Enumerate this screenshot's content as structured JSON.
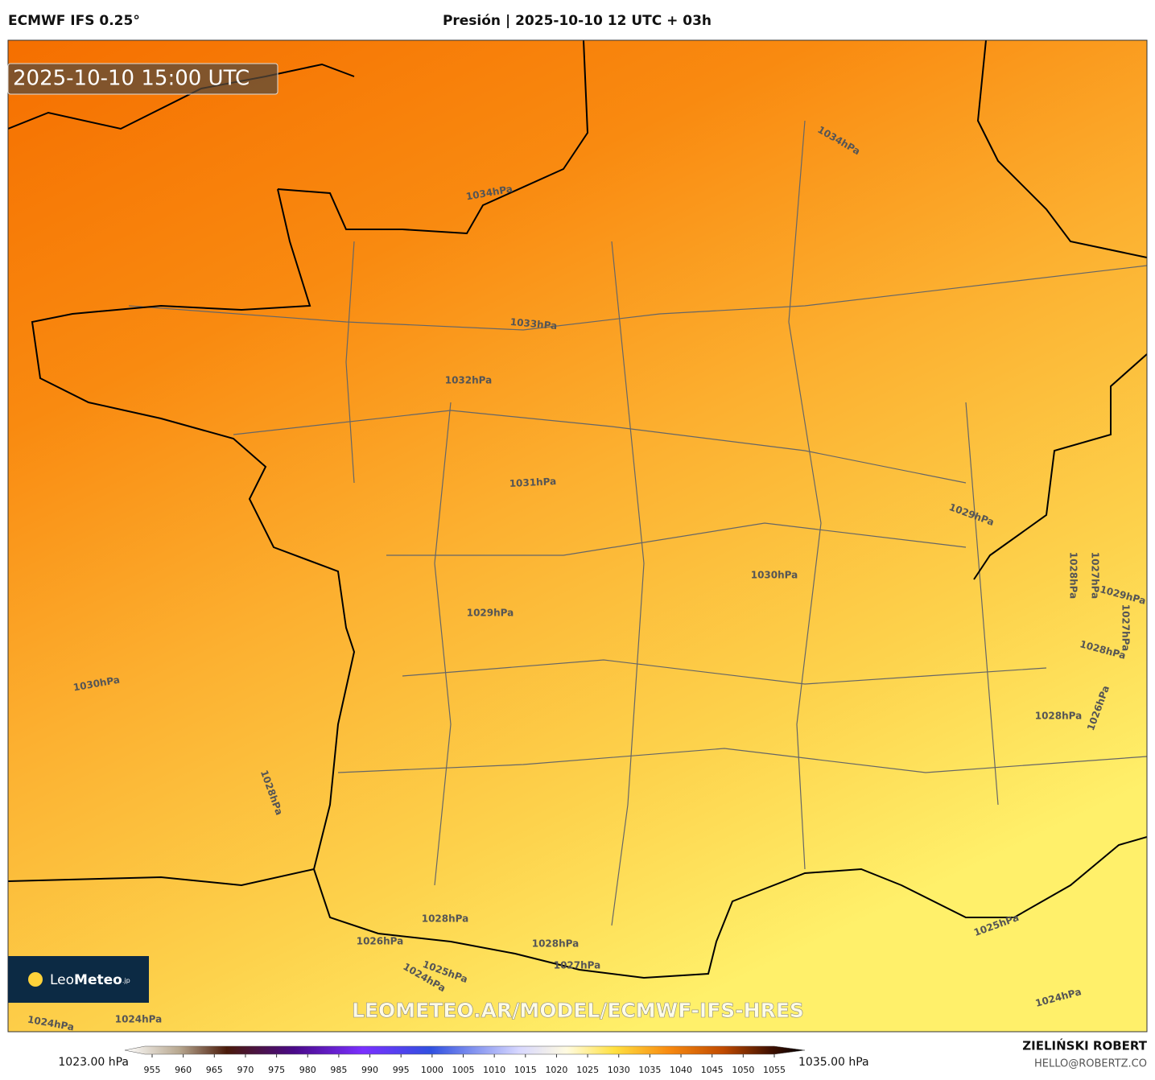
{
  "header": {
    "left": "ECMWF IFS 0.25°",
    "center": "Presión | 2025-10-10 12 UTC + 03h"
  },
  "timestamp": "2025-10-10 15:00 UTC",
  "contour_labels": [
    "1034hPa",
    "1034hPa",
    "1033hPa",
    "1032hPa",
    "1031hPa",
    "1029hPa",
    "1030hPa",
    "1029hPa",
    "1030hPa",
    "1028hPa",
    "1027hPa",
    "1029hPa",
    "1027hPa",
    "1028hPa",
    "1028hPa",
    "1026hPa",
    "1028hPa",
    "1028hPa",
    "1026hPa",
    "1025hPa",
    "1024hPa",
    "1028hPa",
    "1027hPa",
    "1025hPa",
    "1024hPa",
    "1024hPa",
    "1024hPa"
  ],
  "watermark": "LEOMETEO.AR/MODEL/ECMWF-IFS-HRES",
  "logo": {
    "light": "Leo",
    "bold": "Meteo",
    "suffix": ".jp"
  },
  "colorbar": {
    "min_label": "1023.00 hPa",
    "max_label": "1035.00 hPa",
    "ticks": [
      955,
      960,
      965,
      970,
      975,
      980,
      985,
      990,
      995,
      1000,
      1005,
      1010,
      1015,
      1020,
      1025,
      1030,
      1035,
      1040,
      1045,
      1050,
      1055
    ]
  },
  "credits": {
    "author": "ZIELIŃSKI ROBERT",
    "email": "HELLO@ROBERTZ.CO"
  }
}
